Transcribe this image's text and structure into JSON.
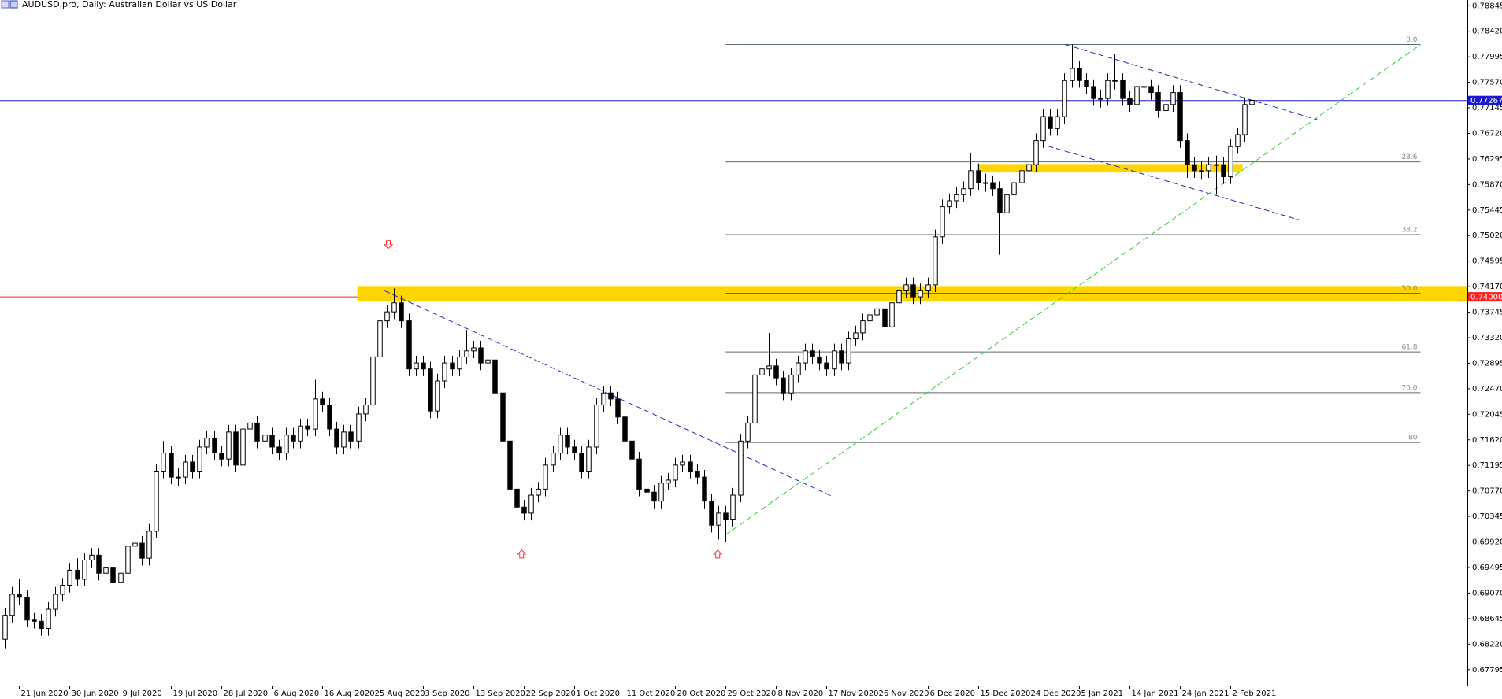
{
  "chart_data": {
    "type": "candlestick",
    "title": "AUDUSD.pro, Daily:  Australian Dollar vs US Dollar",
    "up_color": "#ffffff",
    "down_color": "#000000",
    "ohlc": [
      [
        0.683,
        0.6882,
        0.6815,
        0.687
      ],
      [
        0.687,
        0.6917,
        0.6858,
        0.6905
      ],
      [
        0.6905,
        0.693,
        0.6888,
        0.69
      ],
      [
        0.69,
        0.6912,
        0.685,
        0.6862
      ],
      [
        0.6862,
        0.6874,
        0.6848,
        0.686
      ],
      [
        0.686,
        0.6872,
        0.6836,
        0.6848
      ],
      [
        0.6848,
        0.6892,
        0.6836,
        0.688
      ],
      [
        0.688,
        0.6917,
        0.6868,
        0.6905
      ],
      [
        0.6905,
        0.6932,
        0.6893,
        0.692
      ],
      [
        0.692,
        0.6957,
        0.6908,
        0.6945
      ],
      [
        0.6945,
        0.6965,
        0.6918,
        0.693
      ],
      [
        0.693,
        0.6974,
        0.6918,
        0.6962
      ],
      [
        0.6962,
        0.6982,
        0.695,
        0.697
      ],
      [
        0.697,
        0.6982,
        0.6928,
        0.694
      ],
      [
        0.694,
        0.6962,
        0.6928,
        0.695
      ],
      [
        0.695,
        0.6962,
        0.6913,
        0.6925
      ],
      [
        0.6925,
        0.6952,
        0.6913,
        0.694
      ],
      [
        0.694,
        0.6997,
        0.6928,
        0.6985
      ],
      [
        0.6985,
        0.7002,
        0.6973,
        0.699
      ],
      [
        0.699,
        0.7002,
        0.6953,
        0.6965
      ],
      [
        0.6965,
        0.7022,
        0.6953,
        0.701
      ],
      [
        0.701,
        0.7122,
        0.6998,
        0.711
      ],
      [
        0.711,
        0.716,
        0.7098,
        0.714
      ],
      [
        0.714,
        0.7152,
        0.7088,
        0.71
      ],
      [
        0.71,
        0.7115,
        0.7085,
        0.71
      ],
      [
        0.71,
        0.7137,
        0.7088,
        0.7125
      ],
      [
        0.7125,
        0.7137,
        0.7098,
        0.711
      ],
      [
        0.711,
        0.7162,
        0.7098,
        0.715
      ],
      [
        0.715,
        0.7177,
        0.7138,
        0.7165
      ],
      [
        0.7165,
        0.7177,
        0.7128,
        0.714
      ],
      [
        0.714,
        0.7152,
        0.7118,
        0.713
      ],
      [
        0.713,
        0.7187,
        0.7118,
        0.7175
      ],
      [
        0.7175,
        0.7187,
        0.7108,
        0.712
      ],
      [
        0.712,
        0.7192,
        0.7108,
        0.718
      ],
      [
        0.718,
        0.7225,
        0.7168,
        0.719
      ],
      [
        0.719,
        0.7202,
        0.7148,
        0.716
      ],
      [
        0.716,
        0.7182,
        0.7148,
        0.717
      ],
      [
        0.717,
        0.7182,
        0.7138,
        0.715
      ],
      [
        0.715,
        0.7162,
        0.7128,
        0.714
      ],
      [
        0.714,
        0.7182,
        0.7128,
        0.717
      ],
      [
        0.717,
        0.7182,
        0.7148,
        0.716
      ],
      [
        0.716,
        0.7197,
        0.7148,
        0.7185
      ],
      [
        0.7185,
        0.7197,
        0.7168,
        0.718
      ],
      [
        0.718,
        0.7262,
        0.7168,
        0.723
      ],
      [
        0.723,
        0.7242,
        0.7208,
        0.722
      ],
      [
        0.722,
        0.7232,
        0.7168,
        0.718
      ],
      [
        0.718,
        0.7192,
        0.7138,
        0.715
      ],
      [
        0.715,
        0.7187,
        0.7138,
        0.7175
      ],
      [
        0.7175,
        0.7187,
        0.7148,
        0.716
      ],
      [
        0.716,
        0.7217,
        0.7148,
        0.7205
      ],
      [
        0.7205,
        0.7232,
        0.7193,
        0.722
      ],
      [
        0.722,
        0.7312,
        0.7208,
        0.73
      ],
      [
        0.73,
        0.7372,
        0.7288,
        0.736
      ],
      [
        0.736,
        0.7387,
        0.7348,
        0.7375
      ],
      [
        0.7375,
        0.7414,
        0.7363,
        0.739
      ],
      [
        0.739,
        0.7402,
        0.7348,
        0.736
      ],
      [
        0.736,
        0.7372,
        0.7268,
        0.728
      ],
      [
        0.728,
        0.7302,
        0.7268,
        0.729
      ],
      [
        0.729,
        0.7302,
        0.7268,
        0.728
      ],
      [
        0.728,
        0.7292,
        0.7198,
        0.721
      ],
      [
        0.721,
        0.7272,
        0.7198,
        0.726
      ],
      [
        0.726,
        0.7302,
        0.7248,
        0.729
      ],
      [
        0.729,
        0.7302,
        0.7268,
        0.728
      ],
      [
        0.728,
        0.7312,
        0.7268,
        0.73
      ],
      [
        0.73,
        0.7345,
        0.7288,
        0.731
      ],
      [
        0.731,
        0.7327,
        0.7298,
        0.7315
      ],
      [
        0.7315,
        0.7327,
        0.7278,
        0.729
      ],
      [
        0.729,
        0.7307,
        0.7278,
        0.7295
      ],
      [
        0.7295,
        0.7307,
        0.7228,
        0.724
      ],
      [
        0.724,
        0.7252,
        0.7148,
        0.716
      ],
      [
        0.716,
        0.7172,
        0.7068,
        0.708
      ],
      [
        0.708,
        0.7092,
        0.701,
        0.705
      ],
      [
        0.705,
        0.7062,
        0.7028,
        0.704
      ],
      [
        0.704,
        0.7082,
        0.7028,
        0.707
      ],
      [
        0.707,
        0.7092,
        0.7058,
        0.708
      ],
      [
        0.708,
        0.7132,
        0.7068,
        0.712
      ],
      [
        0.712,
        0.7152,
        0.7108,
        0.714
      ],
      [
        0.714,
        0.7182,
        0.7128,
        0.717
      ],
      [
        0.717,
        0.7182,
        0.7138,
        0.715
      ],
      [
        0.715,
        0.7162,
        0.7128,
        0.714
      ],
      [
        0.714,
        0.7152,
        0.7098,
        0.711
      ],
      [
        0.711,
        0.7162,
        0.7098,
        0.715
      ],
      [
        0.715,
        0.7232,
        0.7138,
        0.722
      ],
      [
        0.722,
        0.7252,
        0.7208,
        0.724
      ],
      [
        0.724,
        0.7252,
        0.7218,
        0.723
      ],
      [
        0.723,
        0.7242,
        0.7188,
        0.72
      ],
      [
        0.72,
        0.7212,
        0.7148,
        0.716
      ],
      [
        0.716,
        0.7172,
        0.7118,
        0.713
      ],
      [
        0.713,
        0.7142,
        0.7068,
        0.708
      ],
      [
        0.708,
        0.7092,
        0.7063,
        0.7075
      ],
      [
        0.7075,
        0.7087,
        0.7048,
        0.706
      ],
      [
        0.706,
        0.7102,
        0.7048,
        0.709
      ],
      [
        0.709,
        0.7107,
        0.7078,
        0.7095
      ],
      [
        0.7095,
        0.7132,
        0.7083,
        0.712
      ],
      [
        0.712,
        0.7137,
        0.7108,
        0.7125
      ],
      [
        0.7125,
        0.7137,
        0.7098,
        0.711
      ],
      [
        0.711,
        0.7122,
        0.7088,
        0.71
      ],
      [
        0.71,
        0.7112,
        0.7048,
        0.706
      ],
      [
        0.706,
        0.7072,
        0.7008,
        0.702
      ],
      [
        0.702,
        0.7052,
        0.6996,
        0.704
      ],
      [
        0.704,
        0.7052,
        0.6992,
        0.703
      ],
      [
        0.703,
        0.7082,
        0.7018,
        0.707
      ],
      [
        0.707,
        0.7172,
        0.7058,
        0.716
      ],
      [
        0.716,
        0.7202,
        0.7148,
        0.719
      ],
      [
        0.719,
        0.7282,
        0.7178,
        0.727
      ],
      [
        0.727,
        0.7292,
        0.7258,
        0.728
      ],
      [
        0.728,
        0.734,
        0.7268,
        0.7285
      ],
      [
        0.7285,
        0.7297,
        0.7253,
        0.7265
      ],
      [
        0.7265,
        0.7277,
        0.7228,
        0.724
      ],
      [
        0.724,
        0.7282,
        0.7228,
        0.727
      ],
      [
        0.727,
        0.7302,
        0.7258,
        0.729
      ],
      [
        0.729,
        0.7322,
        0.7278,
        0.731
      ],
      [
        0.731,
        0.7322,
        0.7288,
        0.73
      ],
      [
        0.73,
        0.7312,
        0.7278,
        0.729
      ],
      [
        0.729,
        0.7302,
        0.7268,
        0.728
      ],
      [
        0.728,
        0.7322,
        0.7268,
        0.731
      ],
      [
        0.731,
        0.7322,
        0.7278,
        0.729
      ],
      [
        0.729,
        0.7342,
        0.7278,
        0.733
      ],
      [
        0.733,
        0.7352,
        0.7318,
        0.734
      ],
      [
        0.734,
        0.7372,
        0.7328,
        0.736
      ],
      [
        0.736,
        0.7382,
        0.7348,
        0.737
      ],
      [
        0.737,
        0.7392,
        0.7358,
        0.738
      ],
      [
        0.738,
        0.7392,
        0.7338,
        0.735
      ],
      [
        0.735,
        0.7402,
        0.7338,
        0.739
      ],
      [
        0.739,
        0.7422,
        0.7378,
        0.741
      ],
      [
        0.741,
        0.7432,
        0.7398,
        0.742
      ],
      [
        0.742,
        0.7432,
        0.7388,
        0.74
      ],
      [
        0.74,
        0.7422,
        0.7388,
        0.741
      ],
      [
        0.741,
        0.7432,
        0.7398,
        0.742
      ],
      [
        0.742,
        0.7512,
        0.7408,
        0.75
      ],
      [
        0.75,
        0.7562,
        0.7488,
        0.755
      ],
      [
        0.755,
        0.7572,
        0.7538,
        0.756
      ],
      [
        0.756,
        0.7582,
        0.7548,
        0.757
      ],
      [
        0.757,
        0.7592,
        0.7558,
        0.758
      ],
      [
        0.758,
        0.764,
        0.7568,
        0.761
      ],
      [
        0.761,
        0.7622,
        0.7578,
        0.759
      ],
      [
        0.759,
        0.7605,
        0.7575,
        0.759
      ],
      [
        0.759,
        0.7602,
        0.7568,
        0.758
      ],
      [
        0.758,
        0.7592,
        0.747,
        0.754
      ],
      [
        0.754,
        0.7582,
        0.7528,
        0.757
      ],
      [
        0.757,
        0.7602,
        0.7558,
        0.759
      ],
      [
        0.759,
        0.7622,
        0.7578,
        0.761
      ],
      [
        0.761,
        0.7632,
        0.7598,
        0.762
      ],
      [
        0.762,
        0.7672,
        0.7608,
        0.766
      ],
      [
        0.766,
        0.7712,
        0.7648,
        0.77
      ],
      [
        0.77,
        0.7712,
        0.7668,
        0.768
      ],
      [
        0.768,
        0.7712,
        0.7668,
        0.77
      ],
      [
        0.77,
        0.7772,
        0.7688,
        0.776
      ],
      [
        0.776,
        0.782,
        0.7748,
        0.778
      ],
      [
        0.778,
        0.7792,
        0.7748,
        0.776
      ],
      [
        0.776,
        0.7772,
        0.7738,
        0.775
      ],
      [
        0.775,
        0.7762,
        0.7718,
        0.773
      ],
      [
        0.773,
        0.7745,
        0.7715,
        0.773
      ],
      [
        0.773,
        0.7772,
        0.7718,
        0.776
      ],
      [
        0.776,
        0.7805,
        0.7745,
        0.776
      ],
      [
        0.776,
        0.7772,
        0.7718,
        0.773
      ],
      [
        0.773,
        0.7742,
        0.7708,
        0.772
      ],
      [
        0.772,
        0.7762,
        0.7708,
        0.775
      ],
      [
        0.775,
        0.7765,
        0.7735,
        0.775
      ],
      [
        0.775,
        0.7762,
        0.7728,
        0.774
      ],
      [
        0.774,
        0.7752,
        0.7698,
        0.771
      ],
      [
        0.771,
        0.7732,
        0.7698,
        0.772
      ],
      [
        0.772,
        0.7752,
        0.7708,
        0.774
      ],
      [
        0.774,
        0.7752,
        0.7648,
        0.766
      ],
      [
        0.766,
        0.7672,
        0.7598,
        0.762
      ],
      [
        0.762,
        0.7632,
        0.7598,
        0.761
      ],
      [
        0.761,
        0.7625,
        0.7595,
        0.761
      ],
      [
        0.761,
        0.7632,
        0.7598,
        0.762
      ],
      [
        0.762,
        0.7635,
        0.757,
        0.762
      ],
      [
        0.762,
        0.7632,
        0.7588,
        0.76
      ],
      [
        0.76,
        0.7662,
        0.7588,
        0.765
      ],
      [
        0.765,
        0.7682,
        0.7638,
        0.767
      ],
      [
        0.767,
        0.7732,
        0.7658,
        0.772
      ],
      [
        0.772,
        0.7752,
        0.7712,
        0.7727
      ]
    ],
    "xlim": [
      -0.667,
      202.9
    ],
    "ylim": [
      0.6753,
      0.7894
    ],
    "xticks": [
      {
        "value": 2,
        "label": "21 Jun 2020"
      },
      {
        "value": 9,
        "label": "30 Jun 2020"
      },
      {
        "value": 16,
        "label": "9 Jul 2020"
      },
      {
        "value": 23,
        "label": "19 Jul 2020"
      },
      {
        "value": 30,
        "label": "28 Jul 2020"
      },
      {
        "value": 37,
        "label": "6 Aug 2020"
      },
      {
        "value": 44,
        "label": "16 Aug 2020"
      },
      {
        "value": 51,
        "label": "25 Aug 2020"
      },
      {
        "value": 58,
        "label": "3 Sep 2020"
      },
      {
        "value": 65,
        "label": "13 Sep 2020"
      },
      {
        "value": 72,
        "label": "22 Sep 2020"
      },
      {
        "value": 79,
        "label": "1 Oct 2020"
      },
      {
        "value": 86,
        "label": "11 Oct 2020"
      },
      {
        "value": 93,
        "label": "20 Oct 2020"
      },
      {
        "value": 100,
        "label": "29 Oct 2020"
      },
      {
        "value": 107,
        "label": "8 Nov 2020"
      },
      {
        "value": 114,
        "label": "17 Nov 2020"
      },
      {
        "value": 121,
        "label": "26 Nov 2020"
      },
      {
        "value": 128,
        "label": "6 Dec 2020"
      },
      {
        "value": 135,
        "label": "15 Dec 2020"
      },
      {
        "value": 142,
        "label": "24 Dec 2020"
      },
      {
        "value": 149,
        "label": "5 Jan 2021"
      },
      {
        "value": 156,
        "label": "14 Jan 2021"
      },
      {
        "value": 163,
        "label": "24 Jan 2021"
      },
      {
        "value": 170,
        "label": "2 Feb 2021"
      }
    ],
    "yticks": [
      0.78845,
      {
        "value": 0.7842,
        "label": "0.78420"
      },
      0.77995,
      {
        "value": 0.7757,
        "label": "0.77570"
      },
      0.77145,
      {
        "value": 0.7672,
        "label": "0.76720"
      },
      0.76295,
      {
        "value": 0.7587,
        "label": "0.75870"
      },
      0.75445,
      {
        "value": 0.7502,
        "label": "0.75020"
      },
      0.74595,
      {
        "value": 0.7417,
        "label": "0.74170"
      },
      0.73745,
      {
        "value": 0.7332,
        "label": "0.73320"
      },
      0.72895,
      {
        "value": 0.7247,
        "label": "0.72470"
      },
      0.72045,
      {
        "value": 0.7162,
        "label": "0.71620"
      },
      0.71195,
      {
        "value": 0.7077,
        "label": "0.70770"
      },
      0.70345,
      {
        "value": 0.6992,
        "label": "0.69920"
      },
      0.69495,
      {
        "value": 0.6907,
        "label": "0.69070"
      },
      0.68645,
      {
        "value": 0.6822,
        "label": "0.68220"
      },
      0.67795
    ],
    "zones": [
      {
        "x": [
          48.9,
          202.9
        ],
        "y": [
          0.7392,
          0.7418
        ],
        "color": "#ffd500"
      },
      {
        "x": [
          134.9,
          171.7
        ],
        "y": [
          0.7607,
          0.7621
        ],
        "color": "#ffd500"
      }
    ],
    "fib": {
      "high": 0.782,
      "low": 0.6992,
      "x": [
        100,
        196.4
      ],
      "color": "#5b6b78",
      "levels": [
        {
          "value": 0,
          "label": "0.0"
        },
        23.6,
        38.2,
        {
          "value": 50,
          "label": "50.0"
        },
        61.8,
        {
          "value": 70,
          "label": "70.0"
        },
        80
      ]
    },
    "hlines": [
      {
        "value": 0.77267,
        "color": "#1a1acc"
      },
      {
        "value": 0.74,
        "label": "0.74000",
        "color": "#ff2020",
        "x": [
          -0.667,
          48.9
        ]
      }
    ],
    "trendlines": [
      {
        "x": [
          52.7,
          114.8
        ],
        "y": [
          0.741,
          0.7068
        ],
        "color": "#2626b8"
      },
      {
        "x": [
          147.1,
          182.3
        ],
        "y": [
          0.782,
          0.7694
        ],
        "color": "#2626b8"
      },
      {
        "x": [
          144.7,
          179.6
        ],
        "y": [
          0.7651,
          0.7528
        ],
        "color": "#2626b8"
      },
      {
        "x": [
          100,
          196.4
        ],
        "y": [
          0.7004,
          0.782
        ],
        "color": "#2ecc2e"
      }
    ],
    "arrows": [
      {
        "x": 53.2,
        "y": 0.7487,
        "dir": "down"
      },
      {
        "x": 71.7,
        "y": 0.6972,
        "dir": "up"
      },
      {
        "x": 98.9,
        "y": 0.6972,
        "dir": "up"
      }
    ],
    "arrow_color": "#ff3030"
  }
}
